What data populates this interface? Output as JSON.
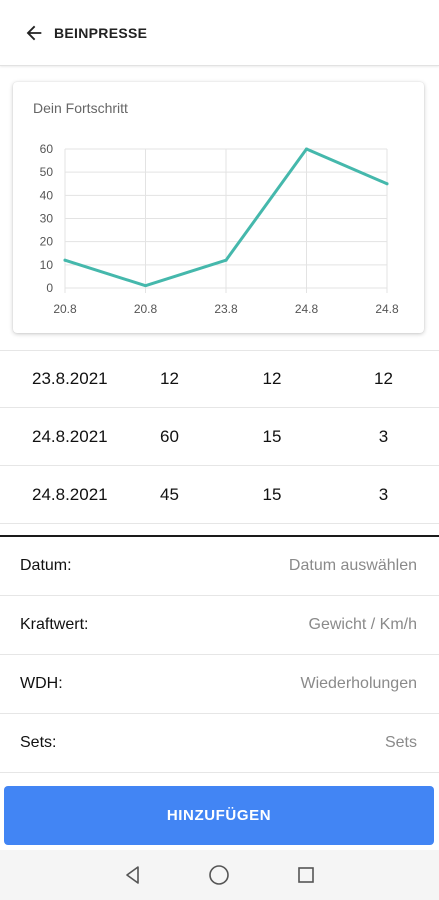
{
  "header": {
    "back_icon": "arrow-left-icon",
    "title": "BEINPRESSE"
  },
  "chart_card": {
    "title": "Dein Fortschritt"
  },
  "chart_data": {
    "type": "line",
    "title": "Dein Fortschritt",
    "categories": [
      "20.8",
      "20.8",
      "23.8",
      "24.8",
      "24.8"
    ],
    "series": [
      {
        "values": [
          12,
          1,
          12,
          60,
          45
        ],
        "color": "#45b8ac"
      }
    ],
    "yticks": [
      0,
      10,
      20,
      30,
      40,
      50,
      60
    ],
    "ylim": [
      0,
      60
    ],
    "grid": true
  },
  "table": {
    "rows": [
      {
        "date": "23.8.2021",
        "a": "12",
        "b": "12",
        "c": "12"
      },
      {
        "date": "24.8.2021",
        "a": "60",
        "b": "15",
        "c": "3"
      },
      {
        "date": "24.8.2021",
        "a": "45",
        "b": "15",
        "c": "3"
      }
    ]
  },
  "form": {
    "date": {
      "label": "Datum:",
      "placeholder": "Datum auswählen"
    },
    "force": {
      "label": "Kraftwert:",
      "placeholder": "Gewicht / Km/h"
    },
    "reps": {
      "label": "WDH:",
      "placeholder": "Wiederholungen"
    },
    "sets": {
      "label": "Sets:",
      "placeholder": "Sets"
    }
  },
  "add_button": {
    "label": "HINZUFÜGEN",
    "color": "#4285f4"
  },
  "navbar": {
    "back_icon": "nav-back-icon",
    "home_icon": "nav-home-icon",
    "recents_icon": "nav-recents-icon"
  }
}
